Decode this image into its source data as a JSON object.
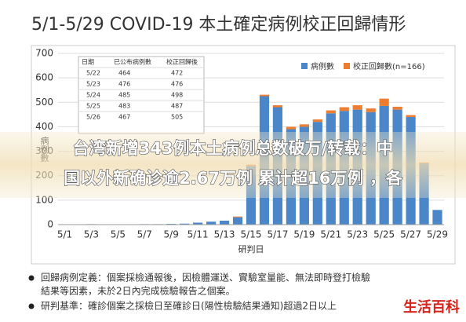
{
  "chart_data": {
    "type": "stacked_bar",
    "title": "5/1-5/29 COVID-19 本土確定病例校正回歸情形",
    "x_label": "研判日",
    "y_label": "病例數",
    "categories": [
      "5/1",
      "5/2",
      "5/3",
      "5/4",
      "5/5",
      "5/6",
      "5/7",
      "5/8",
      "5/9",
      "5/10",
      "5/11",
      "5/12",
      "5/13",
      "5/14",
      "5/15",
      "5/16",
      "5/17",
      "5/18",
      "5/19",
      "5/20",
      "5/21",
      "5/22",
      "5/23",
      "5/24",
      "5/25",
      "5/26",
      "5/27",
      "5/28",
      "5/29"
    ],
    "xtick_labels": [
      "5/1",
      null,
      "5/3",
      null,
      "5/5",
      null,
      "5/7",
      null,
      "5/9",
      null,
      "5/11",
      null,
      "5/13",
      null,
      "5/15",
      null,
      "5/17",
      null,
      "5/19",
      null,
      "5/21",
      null,
      "5/23",
      null,
      "5/25",
      null,
      "5/27",
      null,
      "5/29"
    ],
    "series": [
      {
        "name": "病例數",
        "color": "#4a86c8",
        "values": [
          1,
          0,
          2,
          1,
          1,
          1,
          2,
          2,
          3,
          4,
          8,
          12,
          16,
          30,
          240,
          525,
          480,
          390,
          400,
          420,
          455,
          465,
          470,
          460,
          485,
          470,
          440,
          250,
          60
        ]
      },
      {
        "name": "校正回歸數(n=166)",
        "color": "#ed7d31",
        "values": [
          0,
          0,
          0,
          0,
          0,
          0,
          0,
          0,
          0,
          0,
          0,
          0,
          0,
          3,
          5,
          6,
          8,
          10,
          10,
          10,
          12,
          15,
          18,
          15,
          30,
          12,
          8,
          4,
          0
        ]
      }
    ],
    "ylim": [
      0,
      700
    ],
    "yticks": [
      0,
      100,
      200,
      300,
      400,
      500,
      600,
      700
    ],
    "grid": true,
    "legend": "top-right",
    "table": {
      "header": [
        "日期",
        "已公布病例數",
        "校正回歸後"
      ],
      "rows": [
        [
          "5/22",
          "464",
          "472"
        ],
        [
          "5/23",
          "476",
          "476"
        ],
        [
          "5/24",
          "485",
          "498"
        ],
        [
          "5/25",
          "483",
          "487"
        ],
        [
          "5/26",
          "467",
          "505"
        ]
      ]
    }
  },
  "overlay": [
    "台湾新增343例本土病例总数破万/转载：中",
    "国以外新确诊逾2.67万例 累计超16万例 ，各"
  ],
  "notes": [
    "回歸病例定義：個案採檢通報後，因檢體運送、實驗室量能、無法即時登打檢驗",
    "結果等因素，未於2日內完成檢驗報告之個案。",
    "研判基準：確診個案之採檢日至確診日(陽性檢驗結果通知)超過2日以上"
  ],
  "logo": "生活百科"
}
